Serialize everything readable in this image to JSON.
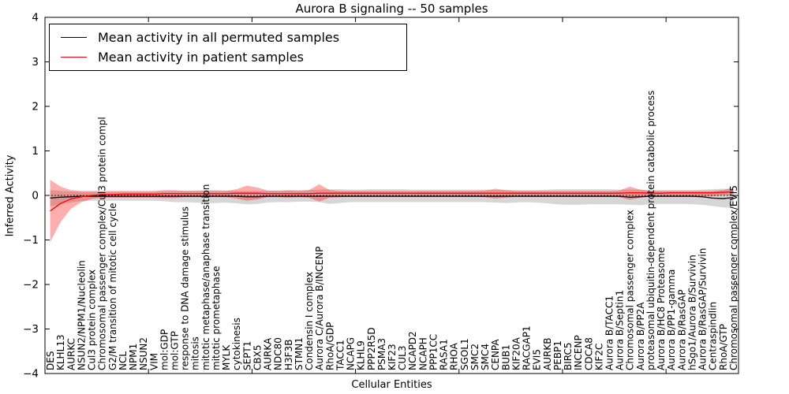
{
  "figure": {
    "title": "Aurora B signaling -- 50 samples",
    "xlabel": "Cellular Entities",
    "ylabel": "Inferred Activity",
    "background": "#ffffff",
    "axis_color": "#000000"
  },
  "legend": {
    "entries": [
      {
        "label": "Mean activity in all permuted samples",
        "color": "#000000"
      },
      {
        "label": "Mean activity in patient samples",
        "color": "#ff0000"
      }
    ]
  },
  "chart_data": {
    "type": "line",
    "title": "Aurora B signaling -- 50 samples",
    "xlabel": "Cellular Entities",
    "ylabel": "Inferred Activity",
    "ylim": [
      -4,
      4
    ],
    "yticks": [
      -4,
      -3,
      -2,
      -1,
      0,
      1,
      2,
      3,
      4
    ],
    "ytick_labels": [
      "−4",
      "−3",
      "−2",
      "−1",
      "0",
      "1",
      "2",
      "3",
      "4"
    ],
    "grid": false,
    "legend_position": "upper left",
    "zero_line_style": "dotted",
    "categories": [
      "DES",
      "KLHL13",
      "AURKC",
      "NSUN2/NPM1/Nucleolin",
      "Cul3 protein complex",
      "Chromosomal passenger complex/Cul3 protein compl",
      "G2/M transition of mitotic cell cycle",
      "NCL",
      "NPM1",
      "NSUN2",
      "VIM",
      "mol:GDP",
      "mol:GTP",
      "response to DNA damage stimulus",
      "mitosis",
      "mitotic metaphase/anaphase transition",
      "mitotic prometaphase",
      "MYLK",
      "cytokinesis",
      "SEPT1",
      "CBX5",
      "AURKA",
      "NDC80",
      "H3F3B",
      "STMN1",
      "Condensin I complex",
      "Aurora C/Aurora B/INCENP",
      "RhoA/GDP",
      "TACC1",
      "NCAPG",
      "KLHL9",
      "PPP2R5D",
      "PSMA3",
      "KIF23",
      "CUL3",
      "NCAPD2",
      "NCAPH",
      "PPP1CC",
      "RASA1",
      "RHOA",
      "SGOL1",
      "SMC2",
      "SMC4",
      "CENPA",
      "BUB1",
      "KIF20A",
      "RACGAP1",
      "EVI5",
      "AURKB",
      "PEBP1",
      "BIRC5",
      "INCENP",
      "CDCA8",
      "KIF2C",
      "Aurora B/TACC1",
      "Aurora B/Septin1",
      "Chromosomal passenger complex",
      "Aurora B/PP2A",
      "proteasomal ubiquitin-dependent protein catabolic process",
      "Aurora B/HC8 Proteasome",
      "Aurora B/PP1-gamma",
      "Aurora B/RasGAP",
      "hSgo1/Aurora B/Survivin",
      "Aurora B/RasGAP/Survivin",
      "Centraspindlin",
      "RhoA/GTP",
      "Chromosomal passenger complex/EVI5"
    ],
    "series": [
      {
        "name": "Mean activity in all permuted samples",
        "color": "#000000",
        "band_color": "rgba(0,0,0,0.16)",
        "values": [
          -0.06,
          -0.04,
          -0.03,
          -0.02,
          -0.02,
          -0.02,
          -0.02,
          -0.02,
          -0.02,
          -0.02,
          -0.02,
          -0.02,
          -0.02,
          -0.02,
          -0.02,
          -0.02,
          -0.02,
          -0.02,
          -0.02,
          -0.03,
          -0.03,
          -0.02,
          -0.02,
          -0.02,
          -0.02,
          -0.02,
          -0.02,
          -0.02,
          -0.02,
          -0.02,
          -0.02,
          -0.02,
          -0.02,
          -0.02,
          -0.02,
          -0.02,
          -0.02,
          -0.02,
          -0.02,
          -0.02,
          -0.02,
          -0.02,
          -0.02,
          -0.02,
          -0.02,
          -0.02,
          -0.02,
          -0.02,
          -0.02,
          -0.02,
          -0.02,
          -0.02,
          -0.02,
          -0.02,
          -0.02,
          -0.02,
          -0.04,
          -0.03,
          -0.02,
          -0.02,
          -0.02,
          -0.02,
          -0.02,
          -0.03,
          -0.06,
          -0.07,
          -0.05
        ],
        "band_upper": [
          0.12,
          0.1,
          0.09,
          0.08,
          0.08,
          0.08,
          0.08,
          0.08,
          0.08,
          0.08,
          0.08,
          0.09,
          0.1,
          0.1,
          0.11,
          0.12,
          0.12,
          0.11,
          0.1,
          0.1,
          0.1,
          0.1,
          0.11,
          0.12,
          0.12,
          0.12,
          0.13,
          0.14,
          0.14,
          0.13,
          0.13,
          0.14,
          0.14,
          0.14,
          0.14,
          0.13,
          0.13,
          0.13,
          0.13,
          0.13,
          0.13,
          0.13,
          0.13,
          0.12,
          0.12,
          0.12,
          0.12,
          0.12,
          0.13,
          0.14,
          0.14,
          0.14,
          0.14,
          0.14,
          0.14,
          0.13,
          0.13,
          0.13,
          0.12,
          0.12,
          0.12,
          0.12,
          0.12,
          0.13,
          0.14,
          0.15,
          0.15
        ],
        "band_lower": [
          -0.25,
          -0.2,
          -0.16,
          -0.13,
          -0.12,
          -0.12,
          -0.12,
          -0.12,
          -0.12,
          -0.12,
          -0.12,
          -0.13,
          -0.15,
          -0.15,
          -0.16,
          -0.17,
          -0.17,
          -0.16,
          -0.18,
          -0.2,
          -0.19,
          -0.16,
          -0.15,
          -0.15,
          -0.14,
          -0.14,
          -0.15,
          -0.19,
          -0.17,
          -0.15,
          -0.15,
          -0.15,
          -0.15,
          -0.15,
          -0.15,
          -0.15,
          -0.15,
          -0.15,
          -0.15,
          -0.15,
          -0.15,
          -0.15,
          -0.15,
          -0.16,
          -0.17,
          -0.16,
          -0.15,
          -0.16,
          -0.18,
          -0.2,
          -0.21,
          -0.21,
          -0.2,
          -0.2,
          -0.2,
          -0.2,
          -0.21,
          -0.22,
          -0.2,
          -0.19,
          -0.19,
          -0.19,
          -0.2,
          -0.21,
          -0.24,
          -0.27,
          -0.28
        ]
      },
      {
        "name": "Mean activity in patient samples",
        "color": "#ff0000",
        "band_color": "rgba(255,0,0,0.32)",
        "values": [
          -0.35,
          -0.18,
          -0.08,
          -0.03,
          0.0,
          0.02,
          0.02,
          0.03,
          0.03,
          0.03,
          0.03,
          0.04,
          0.04,
          0.04,
          0.04,
          0.04,
          0.04,
          0.04,
          0.05,
          0.05,
          0.05,
          0.04,
          0.04,
          0.04,
          0.04,
          0.04,
          0.05,
          0.05,
          0.05,
          0.05,
          0.05,
          0.05,
          0.05,
          0.05,
          0.05,
          0.05,
          0.05,
          0.05,
          0.05,
          0.05,
          0.05,
          0.05,
          0.05,
          0.05,
          0.05,
          0.05,
          0.05,
          0.05,
          0.05,
          0.05,
          0.05,
          0.05,
          0.05,
          0.05,
          0.05,
          0.05,
          0.06,
          0.06,
          0.05,
          0.05,
          0.06,
          0.06,
          0.06,
          0.06,
          0.06,
          0.07,
          0.08
        ],
        "band_upper": [
          0.35,
          0.2,
          0.12,
          0.1,
          0.1,
          0.1,
          0.1,
          0.1,
          0.1,
          0.1,
          0.1,
          0.12,
          0.12,
          0.1,
          0.1,
          0.1,
          0.1,
          0.1,
          0.14,
          0.22,
          0.18,
          0.11,
          0.1,
          0.11,
          0.1,
          0.12,
          0.25,
          0.12,
          0.1,
          0.1,
          0.1,
          0.1,
          0.1,
          0.1,
          0.1,
          0.1,
          0.1,
          0.1,
          0.1,
          0.1,
          0.1,
          0.1,
          0.11,
          0.15,
          0.12,
          0.1,
          0.1,
          0.1,
          0.1,
          0.1,
          0.1,
          0.1,
          0.1,
          0.1,
          0.1,
          0.11,
          0.2,
          0.13,
          0.1,
          0.1,
          0.1,
          0.1,
          0.1,
          0.1,
          0.1,
          0.12,
          0.18
        ],
        "band_lower": [
          -1.05,
          -0.6,
          -0.3,
          -0.15,
          -0.08,
          -0.05,
          -0.05,
          -0.05,
          -0.05,
          -0.05,
          -0.05,
          -0.06,
          -0.06,
          -0.04,
          -0.04,
          -0.04,
          -0.04,
          -0.04,
          -0.07,
          -0.12,
          -0.09,
          -0.04,
          -0.04,
          -0.05,
          -0.04,
          -0.05,
          -0.14,
          -0.05,
          -0.04,
          -0.03,
          -0.03,
          -0.03,
          -0.03,
          -0.03,
          -0.03,
          -0.03,
          -0.03,
          -0.03,
          -0.03,
          -0.03,
          -0.03,
          -0.03,
          -0.04,
          -0.07,
          -0.05,
          -0.03,
          -0.03,
          -0.03,
          -0.03,
          -0.03,
          -0.03,
          -0.03,
          -0.03,
          -0.03,
          -0.03,
          -0.04,
          -0.1,
          -0.05,
          -0.02,
          -0.02,
          -0.02,
          -0.02,
          -0.02,
          -0.02,
          -0.02,
          0.0,
          0.0
        ]
      }
    ]
  }
}
